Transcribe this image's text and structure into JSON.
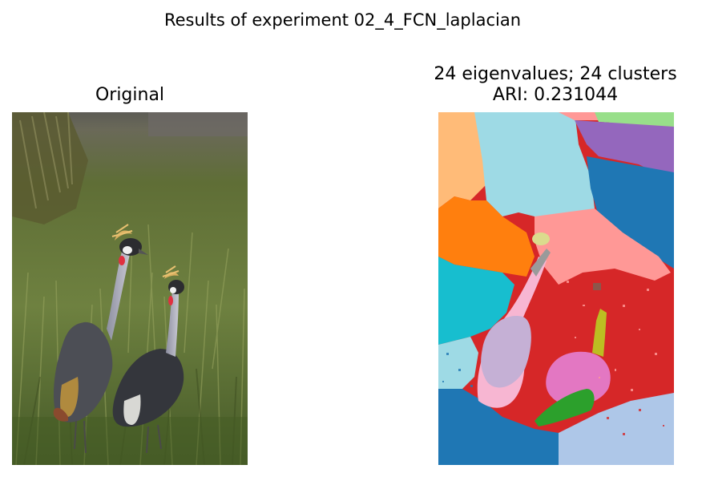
{
  "figure": {
    "suptitle": "Results of experiment 02_4_FCN_laplacian"
  },
  "panels": [
    {
      "title": "Original",
      "content": "photo-two-crowned-cranes-in-grass"
    },
    {
      "title_line1": "24 eigenvalues; 24 clusters",
      "title_line2": "ARI: 0.231044",
      "content": "cluster-segmentation-map"
    }
  ],
  "colors": {
    "grass_dark": "#4a5a2c",
    "grass_light": "#7b8d48",
    "crane_grey": "#9a9ca8",
    "crane_dark": "#3c3f46",
    "cluster_blue": "#1f77b4",
    "cluster_orange": "#ff7f0e",
    "cluster_red": "#d62728",
    "cluster_pink_light": "#ff9896",
    "cluster_light_blue": "#9edae5",
    "cluster_purple": "#9467bd",
    "cluster_cyan": "#17becf",
    "cluster_peach": "#ffbb78",
    "cluster_green": "#2ca02c",
    "cluster_light_green": "#98df8a",
    "cluster_lavender": "#c5b0d5",
    "cluster_magenta": "#e377c2",
    "cluster_pale_pink": "#f7b6d2",
    "cluster_pale_blue": "#aec7e8",
    "cluster_olive": "#bcbd22",
    "cluster_khaki": "#dbdb8d",
    "cluster_brown": "#8c564b"
  }
}
